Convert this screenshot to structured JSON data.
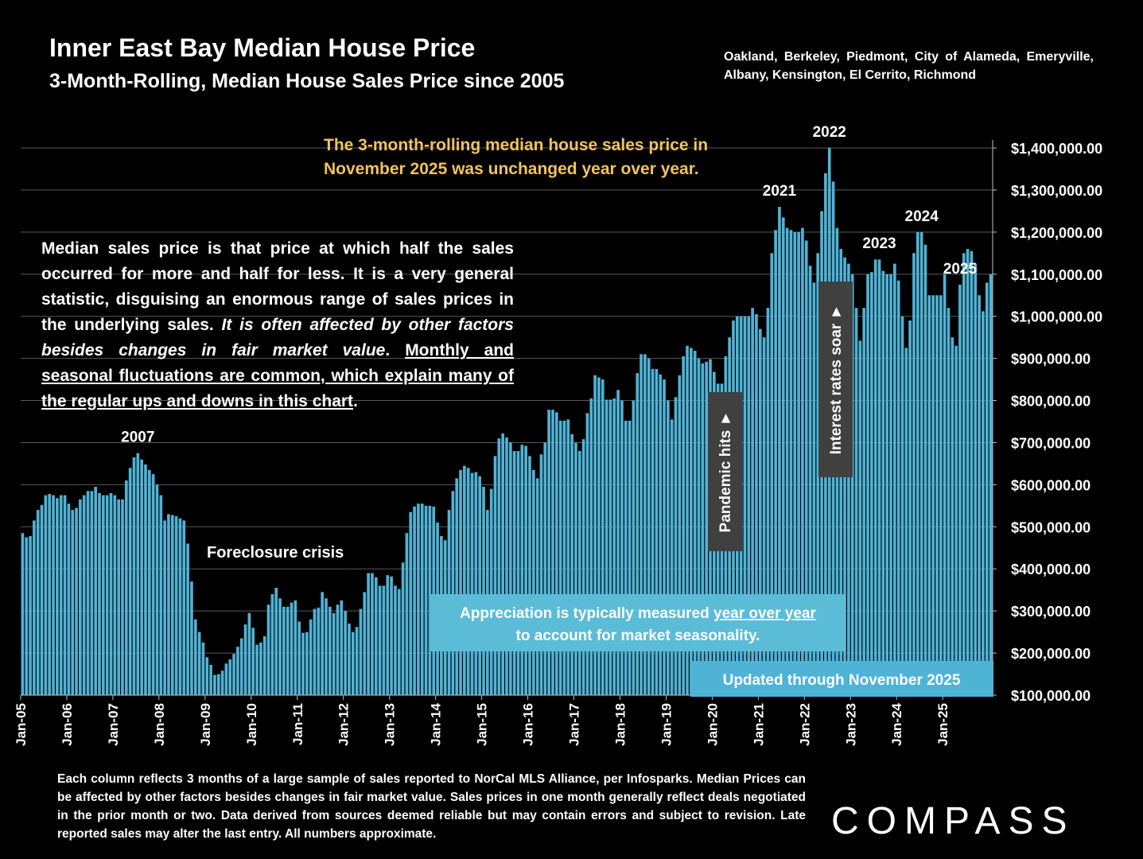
{
  "header": {
    "title": "Inner East Bay Median House Price",
    "subtitle": "3-Month-Rolling, Median House Sales Price since 2005",
    "region": "Oakland, Berkeley, Piedmont, City of Alameda, Emeryville, Albany, Kensington, El Cerrito, Richmond"
  },
  "headline": "The 3-month-rolling median house sales price in November 2025 was unchanged year over year.",
  "explainer": {
    "part1": "Median sales price is that price at which half the sales occurred for more and half for less. It is a very general statistic, disguising an enormous range of sales prices in the underlying sales. ",
    "italic": "It is often affected by other factors besides changes in fair market value",
    "part2": ". ",
    "underlined": "Monthly and seasonal fluctuations are common, which explain many of the regular ups and downs in this chart",
    "part3": "."
  },
  "footnote": "Each column reflects 3 months of a large sample of sales reported to NorCal MLS Alliance, per Infosparks. Median Prices can be affected by other factors besides changes in fair market value. Sales prices in one month generally reflect deals negotiated in the prior month or two. Data derived from sources deemed reliable but may contain errors and subject to revision. Late reported sales may alter the last entry. All numbers approximate.",
  "logo": "COMPASS",
  "colors": {
    "bar": "#4fb3d6",
    "headline": "#f3c261",
    "callout_bg": "#5bbcd8",
    "pill_bg": "#404040"
  },
  "chart_data": {
    "type": "bar",
    "start": "Jan-05",
    "x_tick_labels": [
      "Jan-05",
      "Jan-06",
      "Jan-07",
      "Jan-08",
      "Jan-09",
      "Jan-10",
      "Jan-11",
      "Jan-12",
      "Jan-13",
      "Jan-14",
      "Jan-15",
      "Jan-16",
      "Jan-17",
      "Jan-18",
      "Jan-19",
      "Jan-20",
      "Jan-21",
      "Jan-22",
      "Jan-23",
      "Jan-24",
      "Jan-25"
    ],
    "y_tick_labels": [
      "$100,000.00",
      "$200,000.00",
      "$300,000.00",
      "$400,000.00",
      "$500,000.00",
      "$600,000.00",
      "$700,000.00",
      "$800,000.00",
      "$900,000.00",
      "$1,000,000.00",
      "$1,100,000.00",
      "$1,200,000.00",
      "$1,300,000.00",
      "$1,400,000.00"
    ],
    "ylim": [
      100000,
      1400000
    ],
    "y_axis_position": "right",
    "grid": true,
    "values": [
      485000,
      475000,
      478000,
      515000,
      540000,
      552000,
      575000,
      578000,
      575000,
      568000,
      575000,
      575000,
      555000,
      540000,
      545000,
      565000,
      575000,
      585000,
      585000,
      595000,
      580000,
      575000,
      575000,
      580000,
      575000,
      565000,
      565000,
      610000,
      640000,
      665000,
      675000,
      660000,
      648000,
      635000,
      625000,
      600000,
      575000,
      515000,
      530000,
      528000,
      525000,
      520000,
      515000,
      460000,
      370000,
      280000,
      250000,
      225000,
      190000,
      172000,
      148000,
      150000,
      158000,
      175000,
      185000,
      198000,
      215000,
      235000,
      268000,
      295000,
      260000,
      220000,
      225000,
      240000,
      315000,
      340000,
      355000,
      330000,
      310000,
      310000,
      320000,
      325000,
      275000,
      248000,
      250000,
      280000,
      305000,
      308000,
      345000,
      330000,
      310000,
      295000,
      315000,
      325000,
      300000,
      270000,
      250000,
      262000,
      305000,
      345000,
      390000,
      390000,
      380000,
      360000,
      360000,
      385000,
      382000,
      360000,
      352000,
      415000,
      485000,
      535000,
      548000,
      555000,
      555000,
      550000,
      550000,
      548000,
      510000,
      478000,
      468000,
      540000,
      585000,
      615000,
      635000,
      645000,
      640000,
      628000,
      630000,
      620000,
      595000,
      540000,
      590000,
      668000,
      710000,
      722000,
      712000,
      700000,
      680000,
      680000,
      695000,
      692000,
      668000,
      635000,
      615000,
      672000,
      700000,
      778000,
      778000,
      772000,
      752000,
      752000,
      755000,
      720000,
      700000,
      680000,
      708000,
      770000,
      805000,
      860000,
      855000,
      850000,
      802000,
      802000,
      805000,
      825000,
      800000,
      752000,
      752000,
      800000,
      865000,
      910000,
      910000,
      900000,
      875000,
      875000,
      862000,
      850000,
      800000,
      755000,
      808000,
      860000,
      905000,
      930000,
      925000,
      918000,
      900000,
      888000,
      892000,
      898000,
      868000,
      840000,
      840000,
      905000,
      950000,
      990000,
      1000000,
      1000000,
      1000000,
      1000000,
      1020000,
      1005000,
      970000,
      950000,
      1020000,
      1150000,
      1205000,
      1260000,
      1235000,
      1210000,
      1205000,
      1200000,
      1200000,
      1210000,
      1180000,
      1120000,
      1080000,
      1150000,
      1250000,
      1340000,
      1400000,
      1320000,
      1210000,
      1160000,
      1140000,
      1125000,
      1100000,
      1020000,
      942000,
      1020000,
      1100000,
      1105000,
      1135000,
      1135000,
      1108000,
      1100000,
      1100000,
      1125000,
      1085000,
      1000000,
      925000,
      990000,
      1150000,
      1200000,
      1200000,
      1170000,
      1050000,
      1050000,
      1050000,
      1050000,
      1100000,
      1020000,
      950000,
      930000,
      1075000,
      1150000,
      1160000,
      1155000,
      1125000,
      1050000,
      1012000,
      1080000,
      1100000
    ]
  },
  "annotations": {
    "year_labels": [
      {
        "label": "2007",
        "index": 30
      },
      {
        "label": "2021",
        "index": 197
      },
      {
        "label": "2022",
        "index": 210
      },
      {
        "label": "2023",
        "index": 223
      },
      {
        "label": "2024",
        "index": 234
      },
      {
        "label": "2025",
        "index": 244
      }
    ],
    "foreclosure": "Foreclosure crisis",
    "pandemic": "Pandemic hits ►",
    "interest": "Interest rates soar ►",
    "appreciation_prefix": "Appreciation is typically measured ",
    "appreciation_underlined": "year over year",
    "appreciation_line2": "to account for market seasonality.",
    "updated": "Updated through November 2025"
  }
}
